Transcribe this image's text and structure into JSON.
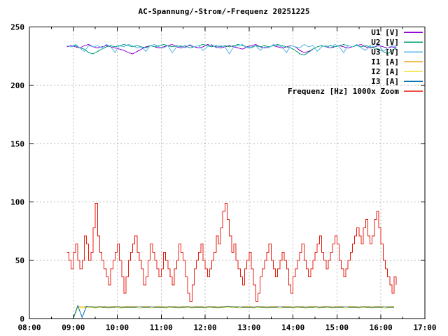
{
  "window": {
    "background": "#ffffff"
  },
  "chart_data": {
    "type": "line",
    "title": "AC-Spannung/-Strom/-Frequenz 20251225",
    "xlabel": "",
    "ylabel": "",
    "x_ticks": [
      "08:00",
      "09:00",
      "10:00",
      "11:00",
      "12:00",
      "13:00",
      "14:00",
      "15:00",
      "16:00",
      "17:00"
    ],
    "x_range_hours": [
      8,
      17
    ],
    "ylim": [
      0,
      250
    ],
    "y_ticks": [
      0,
      50,
      100,
      150,
      200,
      250
    ],
    "grid": "dashed-gray",
    "grid_color": "#b4b4b4",
    "axis_color": "#000000",
    "legend_position": "top-right-inside",
    "series": [
      {
        "name": "U1 [V]",
        "color": "#9400d3",
        "style": "line",
        "x_start": 8.85,
        "x_step": 0.1,
        "values": [
          233,
          234,
          233,
          232,
          234,
          235,
          233,
          232,
          233,
          234,
          233,
          232,
          231,
          230,
          228,
          227,
          229,
          231,
          233,
          234,
          233,
          232,
          233,
          234,
          235,
          233,
          232,
          233,
          234,
          233,
          232,
          233,
          235,
          234,
          233,
          232,
          233,
          234,
          233,
          232,
          231,
          233,
          234,
          235,
          233,
          232,
          233,
          234,
          233,
          232,
          233,
          234,
          233,
          230,
          228,
          229,
          231,
          233,
          234,
          233,
          232,
          233,
          234,
          233,
          232,
          233,
          234,
          235,
          233,
          232,
          233,
          234,
          233,
          232,
          233,
          232
        ]
      },
      {
        "name": "U2 [V]",
        "color": "#009e73",
        "style": "line",
        "x_start": 8.85,
        "x_step": 0.1,
        "values": [
          234,
          233,
          234,
          232,
          231,
          228,
          227,
          229,
          231,
          233,
          234,
          233,
          234,
          235,
          234,
          233,
          234,
          233,
          232,
          234,
          233,
          234,
          235,
          234,
          233,
          234,
          233,
          234,
          232,
          233,
          234,
          235,
          234,
          233,
          234,
          233,
          234,
          233,
          234,
          235,
          234,
          233,
          232,
          234,
          233,
          234,
          233,
          234,
          235,
          234,
          233,
          232,
          230,
          227,
          226,
          228,
          231,
          233,
          234,
          233,
          234,
          233,
          234,
          235,
          234,
          233,
          234,
          233,
          234,
          233,
          232,
          231,
          229,
          227,
          230,
          232
        ]
      },
      {
        "name": "U3 [V]",
        "color": "#56b4e9",
        "style": "line",
        "x_start": 8.85,
        "x_step": 0.1,
        "values": [
          234,
          233,
          235,
          232,
          229,
          234,
          233,
          234,
          232,
          235,
          233,
          228,
          234,
          233,
          235,
          234,
          232,
          233,
          229,
          234,
          235,
          233,
          232,
          234,
          228,
          233,
          234,
          232,
          235,
          233,
          234,
          230,
          233,
          235,
          232,
          234,
          233,
          227,
          233,
          234,
          235,
          232,
          233,
          234,
          230,
          233,
          232,
          235,
          234,
          233,
          228,
          234,
          233,
          232,
          235,
          233,
          234,
          229,
          233,
          234,
          232,
          235,
          233,
          228,
          234,
          233,
          235,
          232,
          230,
          234,
          233,
          235,
          229,
          232,
          234,
          233
        ]
      },
      {
        "name": "I1 [A]",
        "color": "#e69f00",
        "style": "line",
        "x_start": 9.0,
        "x_step": 0.1,
        "values": [
          0.3,
          10.4,
          10.3,
          10.4,
          10.4,
          10.3,
          10.4,
          10.4,
          10.3,
          10.4,
          10.4,
          10.3,
          10.4,
          10.4,
          10.4,
          10.3,
          10.4,
          10.4,
          10.3,
          10.4,
          10.4,
          10.3,
          10.4,
          10.4,
          10.3,
          10.4,
          10.4,
          10.3,
          10.4,
          10.4,
          10.3,
          10.4,
          10.4,
          10.3,
          10.4,
          11.0,
          10.5,
          10.4,
          10.3,
          10.4,
          10.4,
          10.3,
          10.4,
          10.4,
          10.3,
          10.4,
          10.4,
          10.3,
          10.4,
          10.4,
          10.3,
          10.4,
          10.4,
          10.3,
          10.4,
          10.4,
          10.3,
          10.4,
          10.4,
          10.3,
          10.4,
          10.4,
          10.3,
          10.4,
          10.4,
          10.3,
          10.4,
          10.4,
          10.3,
          10.4,
          10.4,
          10.3,
          10.4,
          10.4
        ]
      },
      {
        "name": "I2 [A]",
        "color": "#f0e442",
        "style": "line",
        "x_start": 9.0,
        "x_step": 0.1,
        "values": [
          0.2,
          9.5,
          9.4,
          9.5,
          9.5,
          9.4,
          9.5,
          9.5,
          9.4,
          9.5,
          9.5,
          9.4,
          9.5,
          9.5,
          9.5,
          9.4,
          9.5,
          9.5,
          9.4,
          9.5,
          9.5,
          9.4,
          9.5,
          9.5,
          9.4,
          9.5,
          9.5,
          9.4,
          9.5,
          9.5,
          9.4,
          9.5,
          9.5,
          9.4,
          9.5,
          10.0,
          9.6,
          9.5,
          9.4,
          9.5,
          9.5,
          9.4,
          9.5,
          9.5,
          9.4,
          9.5,
          9.5,
          9.4,
          9.5,
          9.5,
          9.4,
          9.5,
          9.5,
          9.4,
          9.5,
          9.5,
          9.4,
          9.5,
          9.5,
          9.4,
          9.5,
          9.5,
          9.4,
          9.5,
          9.5,
          9.4,
          9.5,
          9.5,
          9.4,
          9.5,
          9.5,
          9.4,
          9.5,
          9.5
        ]
      },
      {
        "name": "I3 [A]",
        "color": "#0072b2",
        "style": "line",
        "x_start": 9.0,
        "x_step": 0.1,
        "values": [
          0.4,
          11.4,
          1.2,
          10.9,
          10.1,
          10.0,
          10.1,
          10.0,
          9.9,
          10.0,
          10.1,
          10.0,
          10.0,
          9.9,
          10.0,
          10.1,
          10.0,
          10.0,
          10.1,
          9.9,
          10.0,
          10.0,
          10.1,
          10.0,
          9.9,
          10.0,
          10.1,
          10.0,
          10.0,
          9.9,
          10.0,
          10.1,
          10.0,
          9.9,
          10.0,
          10.8,
          10.2,
          10.0,
          10.1,
          9.9,
          10.0,
          10.0,
          10.1,
          10.0,
          9.9,
          10.0,
          10.0,
          10.1,
          10.0,
          9.9,
          10.0,
          10.1,
          10.0,
          10.0,
          9.9,
          10.1,
          10.0,
          10.0,
          10.1,
          9.9,
          10.0,
          10.0,
          10.1,
          10.0,
          9.9,
          10.0,
          10.1,
          10.0,
          9.9,
          10.0,
          10.0,
          10.1,
          9.9,
          10.0
        ]
      },
      {
        "name": "Frequenz [Hz] 1000x Zoom",
        "color": "#e51e10",
        "style": "steps",
        "x_start": 8.85,
        "x_step": 0.05,
        "values": [
          57,
          50,
          43,
          57,
          64,
          50,
          43,
          50,
          71,
          64,
          50,
          57,
          78,
          99,
          71,
          57,
          50,
          43,
          36,
          29,
          43,
          50,
          57,
          64,
          50,
          36,
          22,
          36,
          50,
          57,
          64,
          71,
          57,
          50,
          43,
          29,
          36,
          50,
          64,
          57,
          50,
          43,
          36,
          43,
          57,
          50,
          43,
          36,
          29,
          43,
          50,
          64,
          57,
          50,
          36,
          22,
          15,
          29,
          43,
          50,
          57,
          64,
          50,
          43,
          36,
          43,
          50,
          57,
          71,
          64,
          78,
          92,
          99,
          85,
          71,
          57,
          64,
          50,
          43,
          36,
          29,
          43,
          50,
          57,
          43,
          29,
          15,
          22,
          36,
          43,
          50,
          57,
          64,
          50,
          43,
          36,
          43,
          50,
          57,
          50,
          43,
          29,
          22,
          36,
          43,
          50,
          57,
          64,
          50,
          43,
          36,
          43,
          50,
          57,
          64,
          71,
          57,
          50,
          43,
          50,
          57,
          64,
          71,
          64,
          50,
          43,
          36,
          43,
          50,
          57,
          64,
          71,
          78,
          71,
          64,
          78,
          85,
          71,
          64,
          71,
          85,
          92,
          78,
          64,
          50,
          43,
          36,
          29,
          22,
          36,
          29
        ]
      }
    ]
  }
}
